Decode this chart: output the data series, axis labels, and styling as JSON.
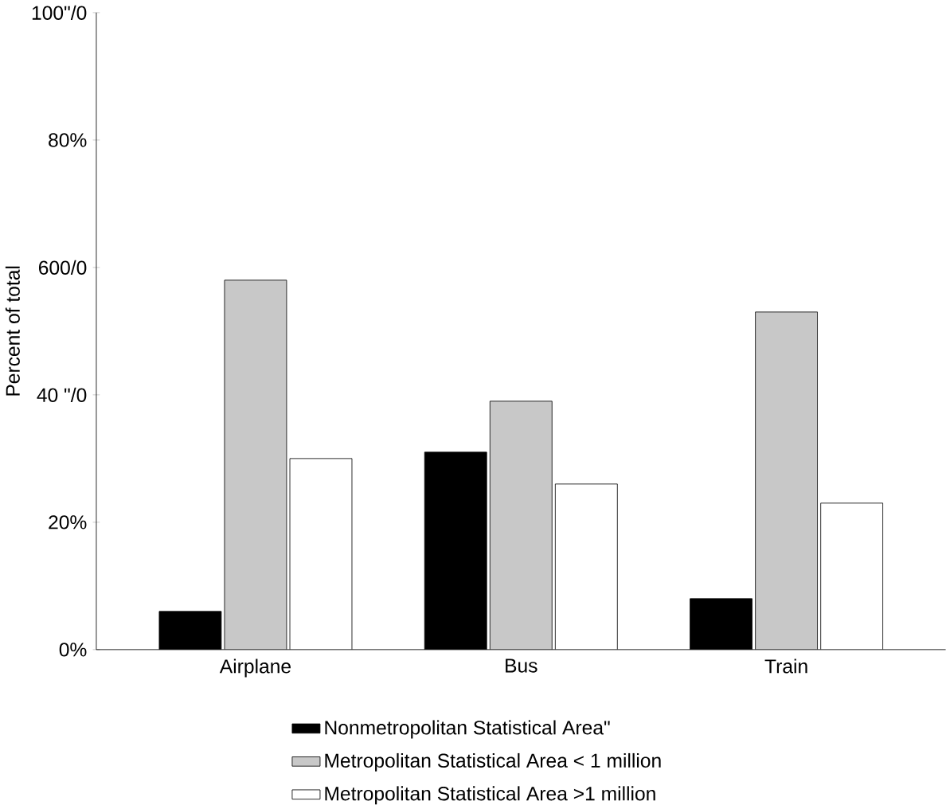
{
  "chart_data": {
    "type": "bar",
    "ylabel": "Percent of total",
    "categories": [
      "Airplane",
      "Bus",
      "Train"
    ],
    "series": [
      {
        "name": "Nonmetropolitan Statistical Area\"",
        "color": "#000000",
        "values": [
          6,
          31,
          8
        ]
      },
      {
        "name": "Metropolitan Statistical Area < 1 million",
        "color": "#c8c8c8",
        "values": [
          58,
          39,
          53
        ]
      },
      {
        "name": "Metropolitan Statistical Area >1 million",
        "color": "#ffffff",
        "values": [
          30,
          26,
          23
        ]
      }
    ],
    "ylim": [
      0,
      100
    ],
    "yticks": [
      {
        "value": 0,
        "label": "0%"
      },
      {
        "value": 20,
        "label": "20%"
      },
      {
        "value": 40,
        "label": "40 \"/0"
      },
      {
        "value": 60,
        "label": "600/0"
      },
      {
        "value": 80,
        "label": "80%"
      },
      {
        "value": 100,
        "label": "100\"/0"
      }
    ],
    "grid": false,
    "legend": "bottom"
  }
}
